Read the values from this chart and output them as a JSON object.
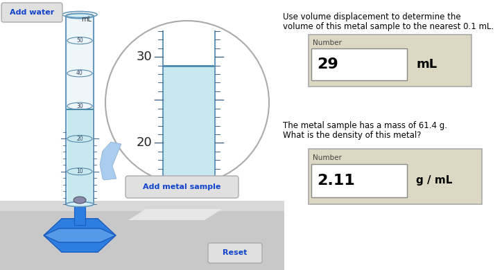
{
  "title_text1": "Use volume displacement to determine the",
  "title_text2": "volume of this metal sample to the nearest 0.1 mL.",
  "question2_text1": "The metal sample has a mass of 61.4 g.",
  "question2_text2": "What is the density of this metal?",
  "box1_label": "Number",
  "box1_value": "29",
  "box1_unit": "mL",
  "box2_label": "Number",
  "box2_value": "2.11",
  "box2_unit": "g / mL",
  "btn_add_water": "Add water",
  "btn_add_metal": "Add metal sample",
  "btn_reset": "Reset",
  "cylinder_ml_label": "mL",
  "water_color": "#c8e8f0",
  "water_surface_color": "#4488aa",
  "glass_edge_color": "#6699bb",
  "glass_fill": "#eef6fa",
  "base_dark": "#1a5cbf",
  "base_mid": "#2e7de0",
  "base_light": "#5599e8",
  "circle_outline": "#aaaaaa",
  "arrow_fill": "#aaccee",
  "table_color": "#c8c8c8",
  "table_top_color": "#d8d8d8",
  "metal_color": "#8888aa"
}
